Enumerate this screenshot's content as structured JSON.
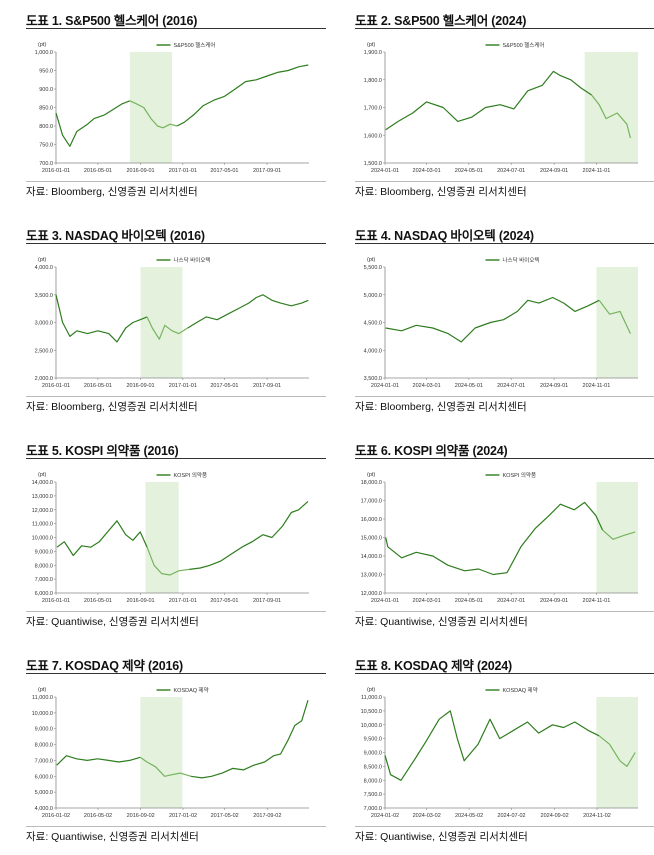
{
  "colors": {
    "line": "#2e7d1e",
    "line_highlight": "#76b35e",
    "highlight_fill": "#e4f2dd",
    "axis": "#888888"
  },
  "panels": [
    {
      "title": "도표 1. S&P500 헬스케어 (2016)",
      "source": "자료: Bloomberg, 신영증권 리서치센터",
      "chart_data": {
        "type": "line",
        "unit_label": "(pt)",
        "legend": "S&P500 헬스케어",
        "ylim": [
          700,
          1000
        ],
        "yticks": [
          700,
          750,
          800,
          850,
          900,
          950,
          1000
        ],
        "ytick_labels": [
          "700.0",
          "750.0",
          "800.0",
          "850.0",
          "900.0",
          "950.0",
          "1,000.0"
        ],
        "xlim": [
          "2016-01-01",
          "2017-12-31"
        ],
        "xtick_labels": [
          "2016-01-01",
          "2016-05-01",
          "2016-09-01",
          "2017-01-01",
          "2017-05-01",
          "2017-09-01"
        ],
        "xtick_dates": [
          "2016-01-01",
          "2016-05-01",
          "2016-09-01",
          "2017-01-01",
          "2017-05-01",
          "2017-09-01"
        ],
        "highlight": [
          "2016-08-01",
          "2016-12-01"
        ],
        "series": [
          {
            "x": [
              "2016-01-01",
              "2016-01-20",
              "2016-02-10",
              "2016-03-01",
              "2016-04-01",
              "2016-04-20",
              "2016-05-20",
              "2016-06-15",
              "2016-07-10",
              "2016-08-01",
              "2016-08-20",
              "2016-09-10",
              "2016-10-01",
              "2016-10-20",
              "2016-11-05",
              "2016-11-25",
              "2016-12-15",
              "2017-01-05",
              "2017-02-01",
              "2017-03-01",
              "2017-04-01",
              "2017-05-01",
              "2017-06-01",
              "2017-07-01",
              "2017-08-01",
              "2017-09-01",
              "2017-10-01",
              "2017-11-01",
              "2017-12-01",
              "2017-12-29"
            ],
            "values": [
              835,
              775,
              745,
              785,
              805,
              820,
              830,
              845,
              860,
              868,
              860,
              850,
              820,
              800,
              795,
              805,
              800,
              810,
              830,
              855,
              870,
              880,
              900,
              920,
              925,
              935,
              945,
              950,
              960,
              965
            ]
          }
        ]
      }
    },
    {
      "title": "도표 2. S&P500 헬스케어 (2024)",
      "source": "자료: Bloomberg, 신영증권 리서치센터",
      "chart_data": {
        "type": "line",
        "unit_label": "(pt)",
        "legend": "S&P500 헬스케어",
        "ylim": [
          1500,
          1900
        ],
        "yticks": [
          1500,
          1600,
          1700,
          1800,
          1900
        ],
        "ytick_labels": [
          "1,500.0",
          "1,600.0",
          "1,700.0",
          "1,800.0",
          "1,900.0"
        ],
        "xlim": [
          "2024-01-01",
          "2024-12-31"
        ],
        "xtick_labels": [
          "2024-01-01",
          "2024-03-01",
          "2024-05-01",
          "2024-07-01",
          "2024-09-01",
          "2024-11-01"
        ],
        "xtick_dates": [
          "2024-01-01",
          "2024-03-01",
          "2024-05-01",
          "2024-07-01",
          "2024-09-01",
          "2024-11-01"
        ],
        "highlight": [
          "2024-10-15",
          "2024-12-31"
        ],
        "series": [
          {
            "x": [
              "2024-01-02",
              "2024-01-20",
              "2024-02-10",
              "2024-03-01",
              "2024-03-25",
              "2024-04-15",
              "2024-05-05",
              "2024-05-25",
              "2024-06-15",
              "2024-07-05",
              "2024-07-25",
              "2024-08-15",
              "2024-08-31",
              "2024-09-10",
              "2024-09-25",
              "2024-10-10",
              "2024-10-25",
              "2024-11-05",
              "2024-11-15",
              "2024-12-01",
              "2024-12-15",
              "2024-12-20"
            ],
            "values": [
              1620,
              1650,
              1680,
              1720,
              1700,
              1650,
              1665,
              1700,
              1710,
              1695,
              1760,
              1780,
              1830,
              1815,
              1800,
              1770,
              1745,
              1710,
              1660,
              1680,
              1640,
              1590
            ]
          }
        ]
      }
    },
    {
      "title": "도표 3. NASDAQ 바이오텍 (2016)",
      "source": "자료: Bloomberg, 신영증권 리서치센터",
      "chart_data": {
        "type": "line",
        "unit_label": "(pt)",
        "legend": "나스닥 바이오텍",
        "ylim": [
          2000,
          4000
        ],
        "yticks": [
          2000,
          2500,
          3000,
          3500,
          4000
        ],
        "ytick_labels": [
          "2,000.0",
          "2,500.0",
          "3,000.0",
          "3,500.0",
          "4,000.0"
        ],
        "xlim": [
          "2016-01-01",
          "2017-12-31"
        ],
        "xtick_labels": [
          "2016-01-01",
          "2016-05-01",
          "2016-09-01",
          "2017-01-01",
          "2017-05-01",
          "2017-09-01"
        ],
        "xtick_dates": [
          "2016-01-01",
          "2016-05-01",
          "2016-09-01",
          "2017-01-01",
          "2017-05-01",
          "2017-09-01"
        ],
        "highlight": [
          "2016-09-01",
          "2016-12-31"
        ],
        "series": [
          {
            "x": [
              "2016-01-01",
              "2016-01-20",
              "2016-02-10",
              "2016-03-01",
              "2016-04-01",
              "2016-05-01",
              "2016-06-01",
              "2016-06-25",
              "2016-07-20",
              "2016-08-10",
              "2016-08-31",
              "2016-09-20",
              "2016-10-05",
              "2016-10-25",
              "2016-11-10",
              "2016-12-01",
              "2016-12-20",
              "2017-01-15",
              "2017-02-10",
              "2017-03-10",
              "2017-04-10",
              "2017-05-10",
              "2017-06-10",
              "2017-07-10",
              "2017-08-01",
              "2017-08-20",
              "2017-09-15",
              "2017-10-10",
              "2017-11-10",
              "2017-12-10",
              "2017-12-29"
            ],
            "values": [
              3500,
              3000,
              2750,
              2850,
              2800,
              2850,
              2800,
              2650,
              2900,
              3000,
              3050,
              3100,
              2900,
              2700,
              2950,
              2850,
              2800,
              2900,
              3000,
              3100,
              3050,
              3150,
              3250,
              3350,
              3450,
              3500,
              3400,
              3350,
              3300,
              3350,
              3400
            ]
          }
        ]
      }
    },
    {
      "title": "도표 4. NASDAQ 바이오텍 (2024)",
      "source": "자료: Bloomberg, 신영증권 리서치센터",
      "chart_data": {
        "type": "line",
        "unit_label": "(pt)",
        "legend": "나스닥 바이오텍",
        "ylim": [
          3500,
          5500
        ],
        "yticks": [
          3500,
          4000,
          4500,
          5000,
          5500
        ],
        "ytick_labels": [
          "3,500.0",
          "4,000.0",
          "4,500.0",
          "5,000.0",
          "5,500.0"
        ],
        "xlim": [
          "2024-01-01",
          "2024-12-31"
        ],
        "xtick_labels": [
          "2024-01-01",
          "2024-03-01",
          "2024-05-01",
          "2024-07-01",
          "2024-09-01",
          "2024-11-01"
        ],
        "xtick_dates": [
          "2024-01-01",
          "2024-03-01",
          "2024-05-01",
          "2024-07-01",
          "2024-09-01",
          "2024-11-01"
        ],
        "highlight": [
          "2024-11-01",
          "2024-12-31"
        ],
        "series": [
          {
            "x": [
              "2024-01-02",
              "2024-01-25",
              "2024-02-15",
              "2024-03-10",
              "2024-04-01",
              "2024-04-20",
              "2024-05-10",
              "2024-06-01",
              "2024-06-20",
              "2024-07-10",
              "2024-07-25",
              "2024-08-10",
              "2024-08-30",
              "2024-09-15",
              "2024-10-01",
              "2024-10-20",
              "2024-11-05",
              "2024-11-20",
              "2024-12-05",
              "2024-12-20"
            ],
            "values": [
              4400,
              4350,
              4450,
              4400,
              4300,
              4150,
              4400,
              4500,
              4550,
              4700,
              4900,
              4850,
              4950,
              4850,
              4700,
              4800,
              4900,
              4650,
              4700,
              4300
            ]
          }
        ]
      }
    },
    {
      "title": "도표 5. KOSPI 의약품 (2016)",
      "source": "자료: Quantiwise, 신영증권 리서치센터",
      "chart_data": {
        "type": "line",
        "unit_label": "(pt)",
        "legend": "KOSPI 의약품",
        "ylim": [
          6000,
          14000
        ],
        "yticks": [
          6000,
          7000,
          8000,
          9000,
          10000,
          11000,
          12000,
          13000,
          14000
        ],
        "ytick_labels": [
          "6,000.0",
          "7,000.0",
          "8,000.0",
          "9,000.0",
          "10,000.0",
          "11,000.0",
          "12,000.0",
          "13,000.0",
          "14,000.0"
        ],
        "xlim": [
          "2016-01-01",
          "2017-12-31"
        ],
        "xtick_labels": [
          "2016-01-01",
          "2016-05-01",
          "2016-09-01",
          "2017-01-01",
          "2017-05-01",
          "2017-09-01"
        ],
        "xtick_dates": [
          "2016-01-01",
          "2016-05-01",
          "2016-09-01",
          "2017-01-01",
          "2017-05-01",
          "2017-09-01"
        ],
        "highlight": [
          "2016-09-15",
          "2016-12-20"
        ],
        "series": [
          {
            "x": [
              "2016-01-04",
              "2016-01-25",
              "2016-02-20",
              "2016-03-15",
              "2016-04-10",
              "2016-05-05",
              "2016-06-01",
              "2016-06-25",
              "2016-07-20",
              "2016-08-10",
              "2016-08-31",
              "2016-09-20",
              "2016-10-10",
              "2016-11-01",
              "2016-11-25",
              "2016-12-20",
              "2017-01-20",
              "2017-02-20",
              "2017-03-20",
              "2017-04-20",
              "2017-05-20",
              "2017-06-20",
              "2017-07-20",
              "2017-08-20",
              "2017-09-15",
              "2017-10-15",
              "2017-11-10",
              "2017-12-01",
              "2017-12-28"
            ],
            "values": [
              9300,
              9700,
              8700,
              9400,
              9300,
              9700,
              10500,
              11200,
              10200,
              9800,
              10400,
              9300,
              8000,
              7400,
              7300,
              7600,
              7700,
              7800,
              8000,
              8300,
              8800,
              9300,
              9700,
              10200,
              10000,
              10800,
              11800,
              12000,
              12600
            ]
          }
        ]
      }
    },
    {
      "title": "도표 6. KOSPI 의약품 (2024)",
      "source": "자료: Quantiwise, 신영증권 리서치센터",
      "chart_data": {
        "type": "line",
        "unit_label": "(pt)",
        "legend": "KOSPI 의약품",
        "ylim": [
          12000,
          18000
        ],
        "yticks": [
          12000,
          13000,
          14000,
          15000,
          16000,
          17000,
          18000
        ],
        "ytick_labels": [
          "12,000.0",
          "13,000.0",
          "14,000.0",
          "15,000.0",
          "16,000.0",
          "17,000.0",
          "18,000.0"
        ],
        "xlim": [
          "2024-01-01",
          "2024-12-31"
        ],
        "xtick_labels": [
          "2024-01-01",
          "2024-03-01",
          "2024-05-01",
          "2024-07-01",
          "2024-09-01",
          "2024-11-01"
        ],
        "xtick_dates": [
          "2024-01-01",
          "2024-03-01",
          "2024-05-01",
          "2024-07-01",
          "2024-09-01",
          "2024-11-01"
        ],
        "highlight": [
          "2024-11-01",
          "2024-12-31"
        ],
        "series": [
          {
            "x": [
              "2024-01-02",
              "2024-01-05",
              "2024-01-25",
              "2024-02-15",
              "2024-03-10",
              "2024-04-01",
              "2024-04-25",
              "2024-05-15",
              "2024-06-05",
              "2024-06-25",
              "2024-07-15",
              "2024-08-05",
              "2024-08-25",
              "2024-09-10",
              "2024-09-30",
              "2024-10-15",
              "2024-10-31",
              "2024-11-10",
              "2024-11-25",
              "2024-12-10",
              "2024-12-27"
            ],
            "values": [
              15000,
              14500,
              13900,
              14200,
              14000,
              13500,
              13200,
              13300,
              13000,
              13100,
              14500,
              15500,
              16200,
              16800,
              16500,
              16900,
              16200,
              15400,
              14900,
              15100,
              15300
            ]
          }
        ]
      }
    },
    {
      "title": "도표 7. KOSDAQ 제약 (2016)",
      "source": "자료: Quantiwise, 신영증권 리서치센터",
      "chart_data": {
        "type": "line",
        "unit_label": "(pt)",
        "legend": "KOSDAQ 제약",
        "ylim": [
          4000,
          11000
        ],
        "yticks": [
          4000,
          5000,
          6000,
          7000,
          8000,
          9000,
          10000,
          11000
        ],
        "ytick_labels": [
          "4,000.0",
          "5,000.0",
          "6,000.0",
          "7,000.0",
          "8,000.0",
          "9,000.0",
          "10,000.0",
          "11,000.0"
        ],
        "xlim": [
          "2016-01-02",
          "2017-12-31"
        ],
        "xtick_labels": [
          "2016-01-02",
          "2016-05-02",
          "2016-09-02",
          "2017-01-02",
          "2017-05-02",
          "2017-09-02"
        ],
        "xtick_dates": [
          "2016-01-02",
          "2016-05-02",
          "2016-09-02",
          "2017-01-02",
          "2017-05-02",
          "2017-09-02"
        ],
        "highlight": [
          "2016-09-01",
          "2016-12-31"
        ],
        "series": [
          {
            "x": [
              "2016-01-04",
              "2016-02-01",
              "2016-03-01",
              "2016-04-01",
              "2016-05-01",
              "2016-06-01",
              "2016-07-01",
              "2016-08-01",
              "2016-09-01",
              "2016-09-20",
              "2016-10-15",
              "2016-11-10",
              "2016-12-01",
              "2016-12-25",
              "2017-01-25",
              "2017-02-25",
              "2017-03-25",
              "2017-04-25",
              "2017-05-25",
              "2017-06-25",
              "2017-07-25",
              "2017-08-25",
              "2017-09-20",
              "2017-10-10",
              "2017-11-01",
              "2017-11-20",
              "2017-12-10",
              "2017-12-28"
            ],
            "values": [
              6700,
              7300,
              7100,
              7000,
              7100,
              7000,
              6900,
              7000,
              7200,
              6900,
              6600,
              6000,
              6100,
              6200,
              6000,
              5900,
              6000,
              6200,
              6500,
              6400,
              6700,
              6900,
              7300,
              7400,
              8300,
              9200,
              9500,
              10800
            ]
          }
        ]
      }
    },
    {
      "title": "도표 8. KOSDAQ 제약 (2024)",
      "source": "자료: Quantiwise, 신영증권 리서치센터",
      "chart_data": {
        "type": "line",
        "unit_label": "(pt)",
        "legend": "KOSDAQ 제약",
        "ylim": [
          7000,
          11000
        ],
        "yticks": [
          7000,
          7500,
          8000,
          8500,
          9000,
          9500,
          10000,
          10500,
          11000
        ],
        "ytick_labels": [
          "7,000.0",
          "7,500.0",
          "8,000.0",
          "8,500.0",
          "9,000.0",
          "9,500.0",
          "10,000.0",
          "10,500.0",
          "11,000.0"
        ],
        "xlim": [
          "2024-01-02",
          "2024-12-31"
        ],
        "xtick_labels": [
          "2024-01-02",
          "2024-03-02",
          "2024-05-02",
          "2024-07-02",
          "2024-09-02",
          "2024-11-02"
        ],
        "xtick_dates": [
          "2024-01-02",
          "2024-03-02",
          "2024-05-02",
          "2024-07-02",
          "2024-09-02",
          "2024-11-02"
        ],
        "highlight": [
          "2024-11-01",
          "2024-12-31"
        ],
        "series": [
          {
            "x": [
              "2024-01-02",
              "2024-01-10",
              "2024-01-25",
              "2024-02-15",
              "2024-03-01",
              "2024-03-20",
              "2024-04-05",
              "2024-04-15",
              "2024-04-25",
              "2024-05-15",
              "2024-06-01",
              "2024-06-15",
              "2024-07-05",
              "2024-07-25",
              "2024-08-10",
              "2024-08-30",
              "2024-09-15",
              "2024-10-01",
              "2024-10-20",
              "2024-11-05",
              "2024-11-20",
              "2024-12-05",
              "2024-12-15",
              "2024-12-27"
            ],
            "values": [
              8900,
              8200,
              8000,
              8800,
              9400,
              10200,
              10500,
              9500,
              8700,
              9300,
              10200,
              9500,
              9800,
              10100,
              9700,
              10000,
              9900,
              10100,
              9800,
              9600,
              9300,
              8700,
              8500,
              9000
            ]
          }
        ]
      }
    }
  ]
}
